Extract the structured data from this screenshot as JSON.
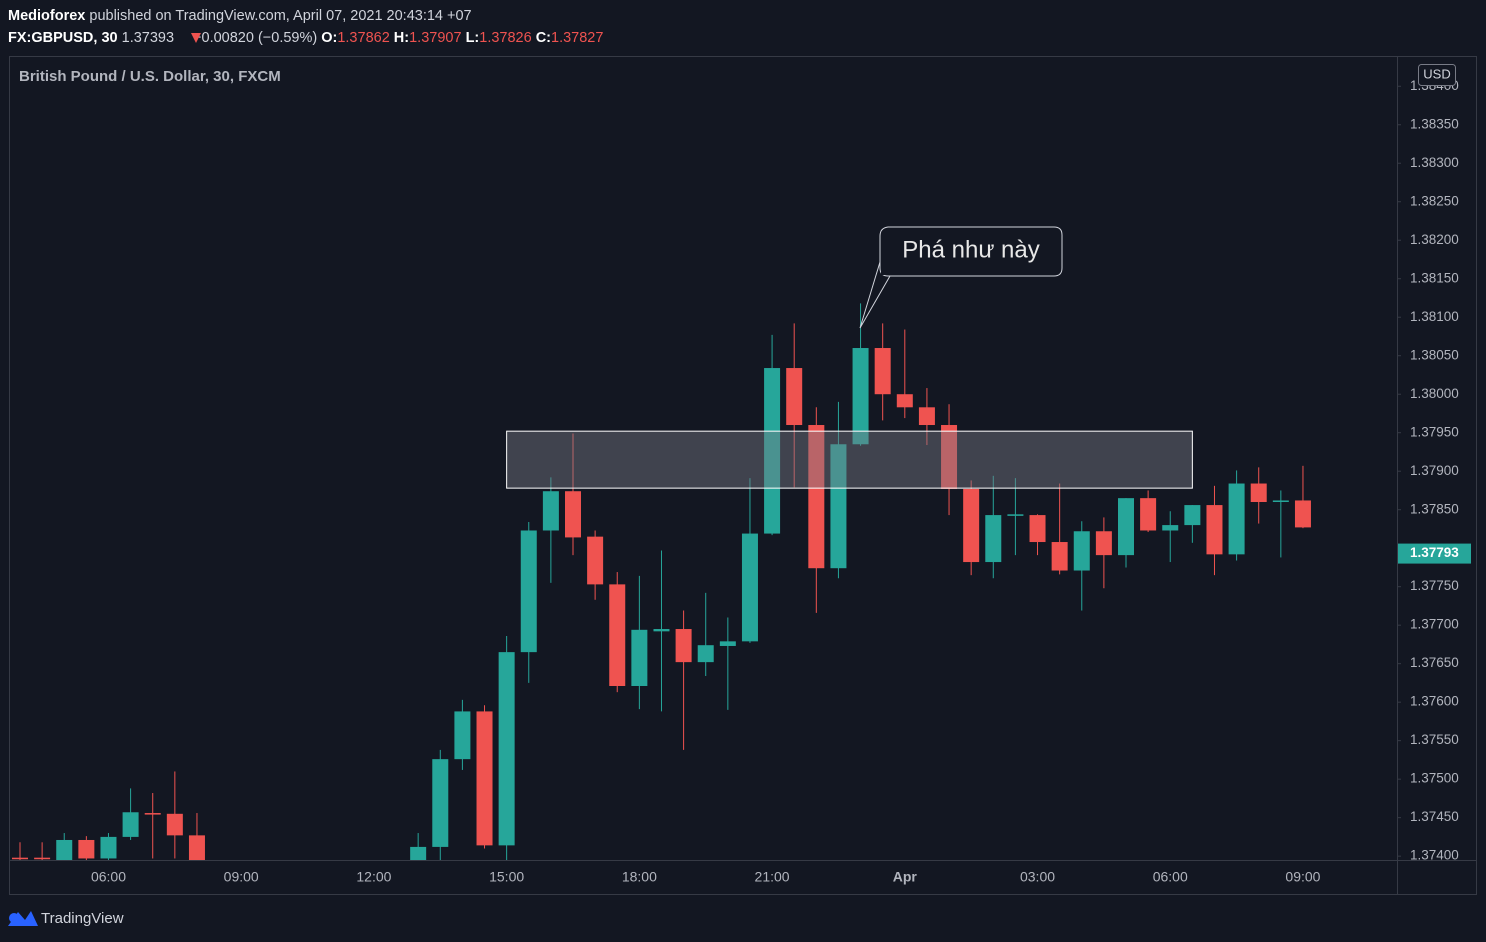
{
  "header": {
    "publisher": "Medioforex",
    "published": "published on TradingView.com, April 07, 2021 20:43:14 +07",
    "symbol": "FX:GBPUSD, 30",
    "price": "1.37393",
    "change": "−0.00820 (−0.59%)",
    "o_label": "O:",
    "o": "1.37862",
    "h_label": "H:",
    "h": "1.37907",
    "l_label": "L:",
    "l": "1.37826",
    "c_label": "C:",
    "c": "1.37827"
  },
  "footer": {
    "brand": "TradingView"
  },
  "chart_data": {
    "type": "candlestick",
    "title": "British Pound / U.S. Dollar, 30, FXCM",
    "currency": "USD",
    "up_color": "#26a69a",
    "down_color": "#ef5350",
    "grid": false,
    "categories": [
      null,
      null,
      null,
      null,
      "06:00",
      null,
      null,
      null,
      null,
      null,
      "09:00",
      null,
      null,
      null,
      null,
      null,
      "12:00",
      null,
      null,
      null,
      null,
      null,
      "15:00",
      null,
      null,
      null,
      null,
      null,
      "18:00",
      null,
      null,
      null,
      null,
      null,
      "21:00",
      null,
      null,
      null,
      null,
      null,
      "Apr",
      null,
      null,
      null,
      null,
      null,
      "03:00",
      null,
      null,
      null,
      null,
      null,
      "06:00",
      null,
      null,
      null,
      null,
      null,
      "09:00"
    ],
    "open": [
      1.37398,
      1.37398,
      1.37395,
      1.37421,
      1.37397,
      1.37425,
      1.37456,
      1.37455,
      1.37427,
      null,
      null,
      null,
      null,
      null,
      null,
      null,
      null,
      null,
      1.3739,
      1.37412,
      1.37526,
      1.37588,
      1.37414,
      1.37665,
      1.37823,
      1.37874,
      1.37815,
      1.37753,
      1.37621,
      1.37692,
      1.37695,
      1.37652,
      1.37673,
      1.37679,
      1.37819,
      1.38034,
      1.3796,
      1.37774,
      1.37935,
      1.3806,
      1.38,
      1.37983,
      1.3796,
      1.37877,
      1.37782,
      1.37842,
      1.37843,
      1.37808,
      1.37771,
      1.37822,
      1.37791,
      1.37865,
      1.37823,
      1.3783,
      1.37856,
      1.37792,
      1.37884,
      1.3786,
      1.37862
    ],
    "high": [
      1.37418,
      1.37418,
      1.3743,
      1.37426,
      1.3743,
      1.37488,
      1.37482,
      1.3751,
      1.37456,
      null,
      null,
      null,
      null,
      null,
      null,
      null,
      null,
      null,
      1.3743,
      1.37538,
      1.37603,
      1.37596,
      1.37686,
      1.37834,
      1.37892,
      1.37949,
      1.37823,
      1.37769,
      1.37764,
      1.37797,
      1.37719,
      1.37742,
      1.3771,
      1.37891,
      1.38077,
      1.38092,
      1.37983,
      1.3799,
      1.38118,
      1.38092,
      1.38084,
      1.38008,
      1.37987,
      1.37888,
      1.37894,
      1.37891,
      1.37844,
      1.37884,
      1.37835,
      1.3784,
      1.37865,
      1.37875,
      1.37848,
      1.37856,
      1.37881,
      1.37901,
      1.37905,
      1.37875,
      1.37907
    ],
    "low": [
      1.3739,
      1.3739,
      1.3739,
      1.37392,
      1.37392,
      1.37421,
      1.37397,
      1.37397,
      1.3739,
      null,
      null,
      null,
      null,
      null,
      null,
      null,
      null,
      null,
      1.37385,
      1.37395,
      1.37512,
      1.3741,
      1.37395,
      1.37625,
      1.37755,
      1.37791,
      1.37733,
      1.37613,
      1.37591,
      1.37588,
      1.37538,
      1.37634,
      1.3759,
      1.37677,
      1.37817,
      1.37879,
      1.37716,
      1.37761,
      1.37933,
      1.37966,
      1.37969,
      1.37934,
      1.37843,
      1.37765,
      1.37761,
      1.37791,
      1.37791,
      1.37766,
      1.37719,
      1.37748,
      1.37775,
      1.37821,
      1.37782,
      1.37807,
      1.37765,
      1.37784,
      1.37832,
      1.37788,
      1.37826
    ],
    "close": [
      1.37396,
      1.37396,
      1.37421,
      1.37397,
      1.37425,
      1.37457,
      1.37454,
      1.37427,
      1.37395,
      null,
      null,
      null,
      null,
      null,
      null,
      null,
      null,
      null,
      1.37412,
      1.37526,
      1.37588,
      1.37414,
      1.37665,
      1.37823,
      1.37874,
      1.37814,
      1.37753,
      1.37621,
      1.37694,
      1.37695,
      1.37652,
      1.37674,
      1.37679,
      1.37819,
      1.38034,
      1.3796,
      1.37774,
      1.37935,
      1.3806,
      1.38,
      1.37983,
      1.3796,
      1.37877,
      1.37782,
      1.37843,
      1.37844,
      1.37808,
      1.37771,
      1.37822,
      1.37791,
      1.37865,
      1.37823,
      1.3783,
      1.37856,
      1.37792,
      1.37884,
      1.3786,
      1.37862,
      1.37827
    ],
    "ylim": [
      1.37395,
      1.38438
    ],
    "yticks": [
      {
        "value": 1.374,
        "label": "1.37400"
      },
      {
        "value": 1.3745,
        "label": "1.37450"
      },
      {
        "value": 1.375,
        "label": "1.37500"
      },
      {
        "value": 1.3755,
        "label": "1.37550"
      },
      {
        "value": 1.376,
        "label": "1.37600"
      },
      {
        "value": 1.3765,
        "label": "1.37650"
      },
      {
        "value": 1.377,
        "label": "1.37700"
      },
      {
        "value": 1.3775,
        "label": "1.37750"
      },
      {
        "value": 1.3785,
        "label": "1.37850"
      },
      {
        "value": 1.379,
        "label": "1.37900"
      },
      {
        "value": 1.3795,
        "label": "1.37950"
      },
      {
        "value": 1.38,
        "label": "1.38000"
      },
      {
        "value": 1.3805,
        "label": "1.38050"
      },
      {
        "value": 1.381,
        "label": "1.38100"
      },
      {
        "value": 1.3815,
        "label": "1.38150"
      },
      {
        "value": 1.382,
        "label": "1.38200"
      },
      {
        "value": 1.3825,
        "label": "1.38250"
      },
      {
        "value": 1.383,
        "label": "1.38300"
      },
      {
        "value": 1.3835,
        "label": "1.38350"
      },
      {
        "value": 1.384,
        "label": "1.38400"
      }
    ],
    "last_price": 1.37793,
    "zone": {
      "x_start": 22,
      "x_end": 53,
      "top": 1.37952,
      "bottom": 1.37878
    },
    "annotation": "Phá như này"
  }
}
